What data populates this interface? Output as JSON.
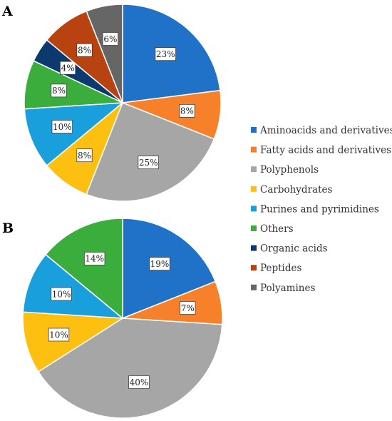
{
  "chart_data": [
    {
      "type": "pie",
      "panel": "A",
      "categories": [
        "Aminoacids and derivatives",
        "Fatty acids and derivatives",
        "Polyphenols",
        "Carbohydrates",
        "Purines and pyrimidines",
        "Others",
        "Organic acids",
        "Peptides",
        "Polyamines"
      ],
      "values": [
        23,
        8,
        25,
        8,
        10,
        8,
        4,
        8,
        6
      ],
      "labels": [
        "23%",
        "8%",
        "25%",
        "8%",
        "10%",
        "8%",
        "4%",
        "8%",
        "6%"
      ]
    },
    {
      "type": "pie",
      "panel": "B",
      "categories": [
        "Aminoacids and derivatives",
        "Fatty acids and derivatives",
        "Polyphenols",
        "Carbohydrates",
        "Purines and pyrimidines",
        "Others"
      ],
      "values": [
        19,
        7,
        40,
        10,
        10,
        14
      ],
      "labels": [
        "19%",
        "7%",
        "40%",
        "10%",
        "10%",
        "14%"
      ]
    }
  ],
  "legend": {
    "placement": "right",
    "entries": [
      "Aminoacids and derivatives",
      "Fatty acids and derivatives",
      "Polyphenols",
      "Carbohydrates",
      "Purines and pyrimidines",
      "Others",
      "Organic acids",
      "Peptides",
      "Polyamines"
    ],
    "colors": [
      "#1f72c7",
      "#f7802b",
      "#a6a6a6",
      "#fdc010",
      "#19a0dc",
      "#3aad3c",
      "#0d3a6e",
      "#b84210",
      "#666666"
    ]
  }
}
